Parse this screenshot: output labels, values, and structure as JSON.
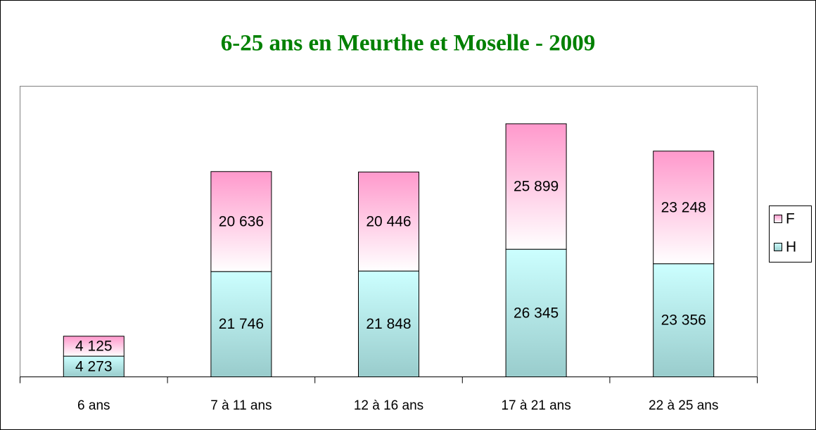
{
  "chart_data": {
    "type": "stacked_bar",
    "title": "6-25 ans en Meurthe et Moselle - 2009",
    "categories": [
      "6 ans",
      "7 à 11 ans",
      "12 à 16 ans",
      "17 à 21 ans",
      "22 à 25 ans"
    ],
    "series": [
      {
        "name": "H",
        "color": "#99cccc",
        "values": [
          4273,
          21746,
          21848,
          26345,
          23356
        ],
        "value_labels": [
          "4 273",
          "21 746",
          "21 848",
          "26 345",
          "23 356"
        ]
      },
      {
        "name": "F",
        "color": "#ff99cc",
        "values": [
          4125,
          20636,
          20446,
          25899,
          23248
        ],
        "value_labels": [
          "4 125",
          "20 636",
          "20 446",
          "25 899",
          "23 248"
        ]
      }
    ],
    "ylim": [
      0,
      60000
    ],
    "legend": "right"
  }
}
